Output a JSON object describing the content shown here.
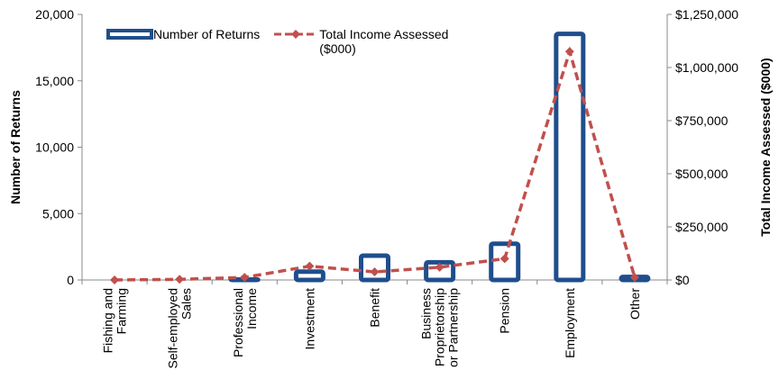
{
  "chart_data": {
    "type": "bar",
    "categories": [
      [
        "Fishing and",
        "Farming"
      ],
      [
        "Self-employed",
        "Sales"
      ],
      [
        "Professional",
        "Income"
      ],
      [
        "Investment"
      ],
      [
        "Benefit"
      ],
      [
        "Business",
        "Proprietorship",
        "or Partnership"
      ],
      [
        "Pension"
      ],
      [
        "Employment"
      ],
      [
        "Other"
      ]
    ],
    "series": [
      {
        "name": "Number of Returns",
        "color": "#1f4e8c",
        "values": [
          100,
          100,
          200,
          800,
          2000,
          1500,
          2900,
          18700,
          400
        ]
      },
      {
        "name": "Total Income Assessed ($000)",
        "color": "#c0504d",
        "axis": "y2",
        "type": "line",
        "values": [
          0,
          3000,
          12000,
          65000,
          38000,
          60000,
          100000,
          1075000,
          12000
        ]
      }
    ],
    "ylabel": "Number of Returns",
    "y2label": "Total Income Assessed ($000)",
    "ylim": [
      0,
      20000
    ],
    "yticks": [
      0,
      {
        "value": 5000,
        "label": "5,000"
      },
      {
        "value": 10000,
        "label": "10,000"
      },
      {
        "value": 15000,
        "label": "15,000"
      },
      {
        "value": 20000,
        "label": "20,000"
      }
    ],
    "y2lim": [
      0,
      1250000
    ],
    "y2ticks": [
      {
        "value": 0,
        "label": "$0"
      },
      {
        "value": 250000,
        "label": "$250,000"
      },
      {
        "value": 500000,
        "label": "$500,000"
      },
      {
        "value": 750000,
        "label": "$750,000"
      },
      {
        "value": 1000000,
        "label": "$1,000,000"
      },
      {
        "value": 1250000,
        "label": "$1,250,000"
      }
    ],
    "legend": "top-left"
  }
}
